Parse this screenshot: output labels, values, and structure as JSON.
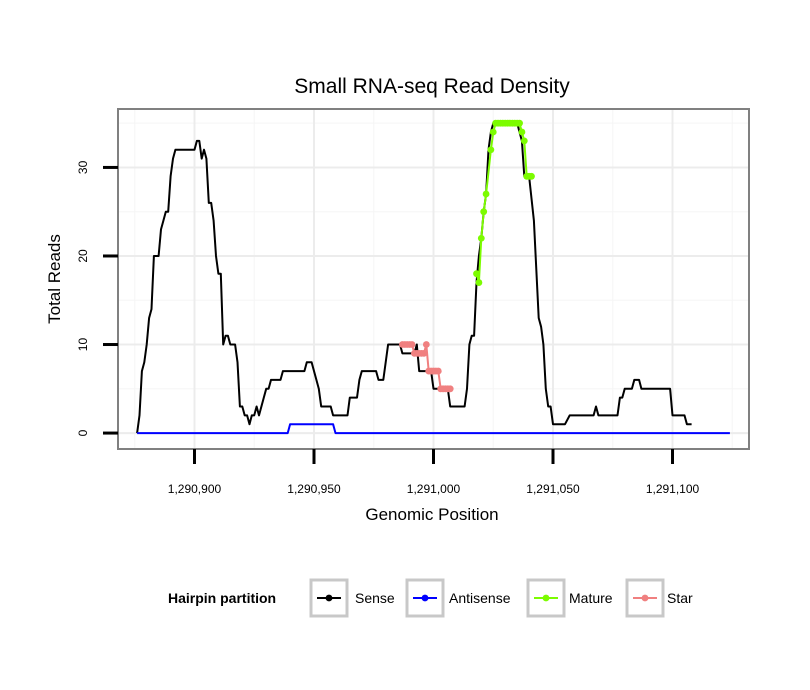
{
  "chart_data": {
    "type": "line",
    "title": "Small RNA-seq Read Density",
    "xlabel": "Genomic Position",
    "ylabel": "Total Reads",
    "xlim": [
      1290868,
      1291132
    ],
    "ylim": [
      -1.8,
      36.6
    ],
    "x_ticks": [
      1290900,
      1290950,
      1291000,
      1291050,
      1291100
    ],
    "x_tick_labels": [
      "1,290,900",
      "1,290,950",
      "1,291,000",
      "1,291,050",
      "1,291,100"
    ],
    "y_ticks": [
      0,
      10,
      20,
      30
    ],
    "y_tick_labels": [
      "0",
      "10",
      "20",
      "30"
    ],
    "grid": true,
    "legend": {
      "title": "Hairpin partition",
      "position": "bottom",
      "entries": [
        "Sense",
        "Antisense",
        "Mature",
        "Star"
      ]
    },
    "series": [
      {
        "name": "Sense",
        "color": "#000000",
        "points": [
          [
            1290876,
            0
          ],
          [
            1290877,
            2
          ],
          [
            1290878,
            7
          ],
          [
            1290879,
            8
          ],
          [
            1290880,
            10
          ],
          [
            1290881,
            13
          ],
          [
            1290882,
            14
          ],
          [
            1290883,
            20
          ],
          [
            1290885,
            20
          ],
          [
            1290886,
            23
          ],
          [
            1290887,
            24
          ],
          [
            1290888,
            25
          ],
          [
            1290889,
            25
          ],
          [
            1290890,
            29
          ],
          [
            1290891,
            31
          ],
          [
            1290892,
            32
          ],
          [
            1290900,
            32
          ],
          [
            1290901,
            33
          ],
          [
            1290902,
            33
          ],
          [
            1290903,
            31
          ],
          [
            1290904,
            32
          ],
          [
            1290905,
            31
          ],
          [
            1290906,
            26
          ],
          [
            1290907,
            26
          ],
          [
            1290908,
            24
          ],
          [
            1290909,
            20
          ],
          [
            1290910,
            18
          ],
          [
            1290911,
            18
          ],
          [
            1290912,
            10
          ],
          [
            1290913,
            11
          ],
          [
            1290914,
            11
          ],
          [
            1290915,
            10
          ],
          [
            1290917,
            10
          ],
          [
            1290918,
            8
          ],
          [
            1290919,
            3
          ],
          [
            1290920,
            3
          ],
          [
            1290921,
            2
          ],
          [
            1290922,
            2
          ],
          [
            1290923,
            1
          ],
          [
            1290924,
            2
          ],
          [
            1290925,
            2
          ],
          [
            1290926,
            3
          ],
          [
            1290927,
            2
          ],
          [
            1290928,
            3
          ],
          [
            1290929,
            4
          ],
          [
            1290930,
            5
          ],
          [
            1290931,
            5
          ],
          [
            1290932,
            6
          ],
          [
            1290936,
            6
          ],
          [
            1290937,
            7
          ],
          [
            1290946,
            7
          ],
          [
            1290947,
            8
          ],
          [
            1290949,
            8
          ],
          [
            1290951,
            6
          ],
          [
            1290952,
            5
          ],
          [
            1290953,
            3
          ],
          [
            1290957,
            3
          ],
          [
            1290958,
            2
          ],
          [
            1290964,
            2
          ],
          [
            1290965,
            4
          ],
          [
            1290968,
            4
          ],
          [
            1290969,
            6
          ],
          [
            1290970,
            7
          ],
          [
            1290976,
            7
          ],
          [
            1290977,
            6
          ],
          [
            1290979,
            6
          ],
          [
            1290980,
            8
          ],
          [
            1290981,
            10
          ],
          [
            1290982,
            10
          ],
          [
            1290986,
            10
          ],
          [
            1290987,
            9
          ],
          [
            1290992,
            9
          ],
          [
            1290993,
            10
          ],
          [
            1290994,
            7
          ],
          [
            1290999,
            7
          ],
          [
            1291000,
            5
          ],
          [
            1291006,
            5
          ],
          [
            1291007,
            3
          ],
          [
            1291013,
            3
          ],
          [
            1291014,
            5
          ],
          [
            1291015,
            10
          ],
          [
            1291016,
            11
          ],
          [
            1291017,
            11
          ],
          [
            1291018,
            17
          ],
          [
            1291019,
            20
          ],
          [
            1291020,
            22
          ],
          [
            1291021,
            25
          ],
          [
            1291022,
            27
          ],
          [
            1291023,
            32
          ],
          [
            1291024,
            34
          ],
          [
            1291025,
            35
          ],
          [
            1291035,
            35
          ],
          [
            1291036,
            34
          ],
          [
            1291037,
            33
          ],
          [
            1291038,
            29
          ],
          [
            1291040,
            29
          ],
          [
            1291042,
            24
          ],
          [
            1291044,
            13
          ],
          [
            1291045,
            12
          ],
          [
            1291046,
            10
          ],
          [
            1291047,
            5
          ],
          [
            1291048,
            3
          ],
          [
            1291049,
            3
          ],
          [
            1291050,
            1
          ],
          [
            1291055,
            1
          ],
          [
            1291057,
            2
          ],
          [
            1291067,
            2
          ],
          [
            1291068,
            3
          ],
          [
            1291069,
            2
          ],
          [
            1291077,
            2
          ],
          [
            1291078,
            4
          ],
          [
            1291079,
            4
          ],
          [
            1291080,
            5
          ],
          [
            1291083,
            5
          ],
          [
            1291084,
            6
          ],
          [
            1291086,
            6
          ],
          [
            1291087,
            5
          ],
          [
            1291099,
            5
          ],
          [
            1291100,
            2
          ],
          [
            1291105,
            2
          ],
          [
            1291106,
            1
          ],
          [
            1291108,
            1
          ]
        ]
      },
      {
        "name": "Antisense",
        "color": "#0000ff",
        "points": [
          [
            1290876,
            0
          ],
          [
            1290939,
            0
          ],
          [
            1290940,
            1
          ],
          [
            1290958,
            1
          ],
          [
            1290959,
            0
          ],
          [
            1291124,
            0
          ]
        ]
      },
      {
        "name": "Mature",
        "color": "#7cfc00",
        "points": [
          [
            1291018,
            18
          ],
          [
            1291019,
            17
          ],
          [
            1291020,
            22
          ],
          [
            1291021,
            25
          ],
          [
            1291022,
            27
          ],
          [
            1291024,
            32
          ],
          [
            1291025,
            34
          ],
          [
            1291026,
            35
          ],
          [
            1291027,
            35
          ],
          [
            1291028,
            35
          ],
          [
            1291029,
            35
          ],
          [
            1291030,
            35
          ],
          [
            1291031,
            35
          ],
          [
            1291032,
            35
          ],
          [
            1291033,
            35
          ],
          [
            1291034,
            35
          ],
          [
            1291035,
            35
          ],
          [
            1291036,
            35
          ],
          [
            1291037,
            34
          ],
          [
            1291038,
            33
          ],
          [
            1291039,
            29
          ],
          [
            1291040,
            29
          ],
          [
            1291041,
            29
          ]
        ]
      },
      {
        "name": "Star",
        "color": "#f08080",
        "points": [
          [
            1290987,
            10
          ],
          [
            1290988,
            10
          ],
          [
            1290989,
            10
          ],
          [
            1290990,
            10
          ],
          [
            1290991,
            10
          ],
          [
            1290992,
            9
          ],
          [
            1290993,
            9
          ],
          [
            1290994,
            9
          ],
          [
            1290995,
            9
          ],
          [
            1290996,
            9
          ],
          [
            1290997,
            10
          ],
          [
            1290998,
            7
          ],
          [
            1290999,
            7
          ],
          [
            1291000,
            7
          ],
          [
            1291001,
            7
          ],
          [
            1291002,
            7
          ],
          [
            1291003,
            5
          ],
          [
            1291004,
            5
          ],
          [
            1291005,
            5
          ],
          [
            1291006,
            5
          ],
          [
            1291007,
            5
          ]
        ]
      }
    ]
  }
}
